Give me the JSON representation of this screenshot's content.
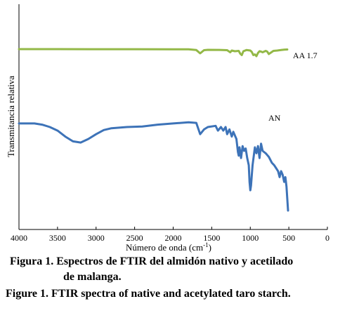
{
  "chart_data": {
    "type": "line",
    "title": "",
    "xlabel": "Número de onda (cm",
    "xlabel_sup": "-1",
    "xlabel_suffix": ")",
    "ylabel": "Transmitancia relativa",
    "xlim": [
      4000,
      0
    ],
    "x_ticks": [
      "4000",
      "3500",
      "3000",
      "2500",
      "2000",
      "1500",
      "1000",
      "500",
      "0"
    ],
    "grid": false,
    "series": [
      {
        "name": "AA 1.7",
        "color": "#93b847",
        "x": [
          4000,
          3500,
          3000,
          2500,
          2000,
          1800,
          1700,
          1650,
          1600,
          1550,
          1400,
          1300,
          1260,
          1240,
          1200,
          1150,
          1130,
          1110,
          1090,
          1050,
          1000,
          980,
          960,
          940,
          920,
          900,
          880,
          860,
          840,
          800,
          780,
          760,
          740,
          700,
          650,
          600,
          560,
          520
        ],
        "y": [
          100,
          100,
          99.8,
          99.8,
          99.6,
          99.3,
          97.5,
          88,
          97,
          98,
          97.8,
          97,
          91,
          96,
          94,
          95,
          87,
          83,
          94,
          97.5,
          96,
          92,
          83,
          85,
          80,
          89,
          94,
          93,
          91,
          95,
          93,
          86,
          89,
          95,
          96,
          97.5,
          98.5,
          99
        ]
      },
      {
        "name": "AN",
        "color": "#3d73b8",
        "x": [
          4000,
          3800,
          3700,
          3600,
          3500,
          3400,
          3300,
          3200,
          3100,
          3000,
          2900,
          2800,
          2600,
          2400,
          2200,
          2000,
          1800,
          1700,
          1650,
          1600,
          1550,
          1450,
          1420,
          1380,
          1350,
          1320,
          1300,
          1270,
          1240,
          1220,
          1180,
          1160,
          1150,
          1140,
          1120,
          1100,
          1080,
          1060,
          1040,
          1020,
          1010,
          1000,
          990,
          970,
          940,
          920,
          900,
          880,
          860,
          840,
          800,
          760,
          720,
          690,
          660,
          640,
          620,
          600,
          580,
          560,
          545,
          530,
          520,
          510
        ],
        "y": [
          73,
          73,
          72,
          70,
          67,
          62,
          58,
          57,
          60,
          64,
          67.5,
          69,
          70,
          70.5,
          72,
          73,
          74,
          73.5,
          64,
          68,
          70,
          71,
          67,
          70,
          67,
          70,
          64,
          68,
          62,
          66,
          60,
          49,
          46,
          53,
          44,
          54,
          50,
          52,
          44,
          38,
          24,
          17,
          21,
          38,
          53,
          48,
          54,
          44,
          56,
          50,
          48,
          45,
          40,
          38,
          35,
          33,
          28,
          33,
          30,
          24,
          28,
          20,
          10,
          0
        ]
      }
    ]
  },
  "caption": {
    "es_line1": "Figura 1. Espectros de FTIR del almidón nativo y acetilado",
    "es_line2": "de malanga.",
    "en": "Figure 1. FTIR spectra of native and acetylated taro starch."
  }
}
